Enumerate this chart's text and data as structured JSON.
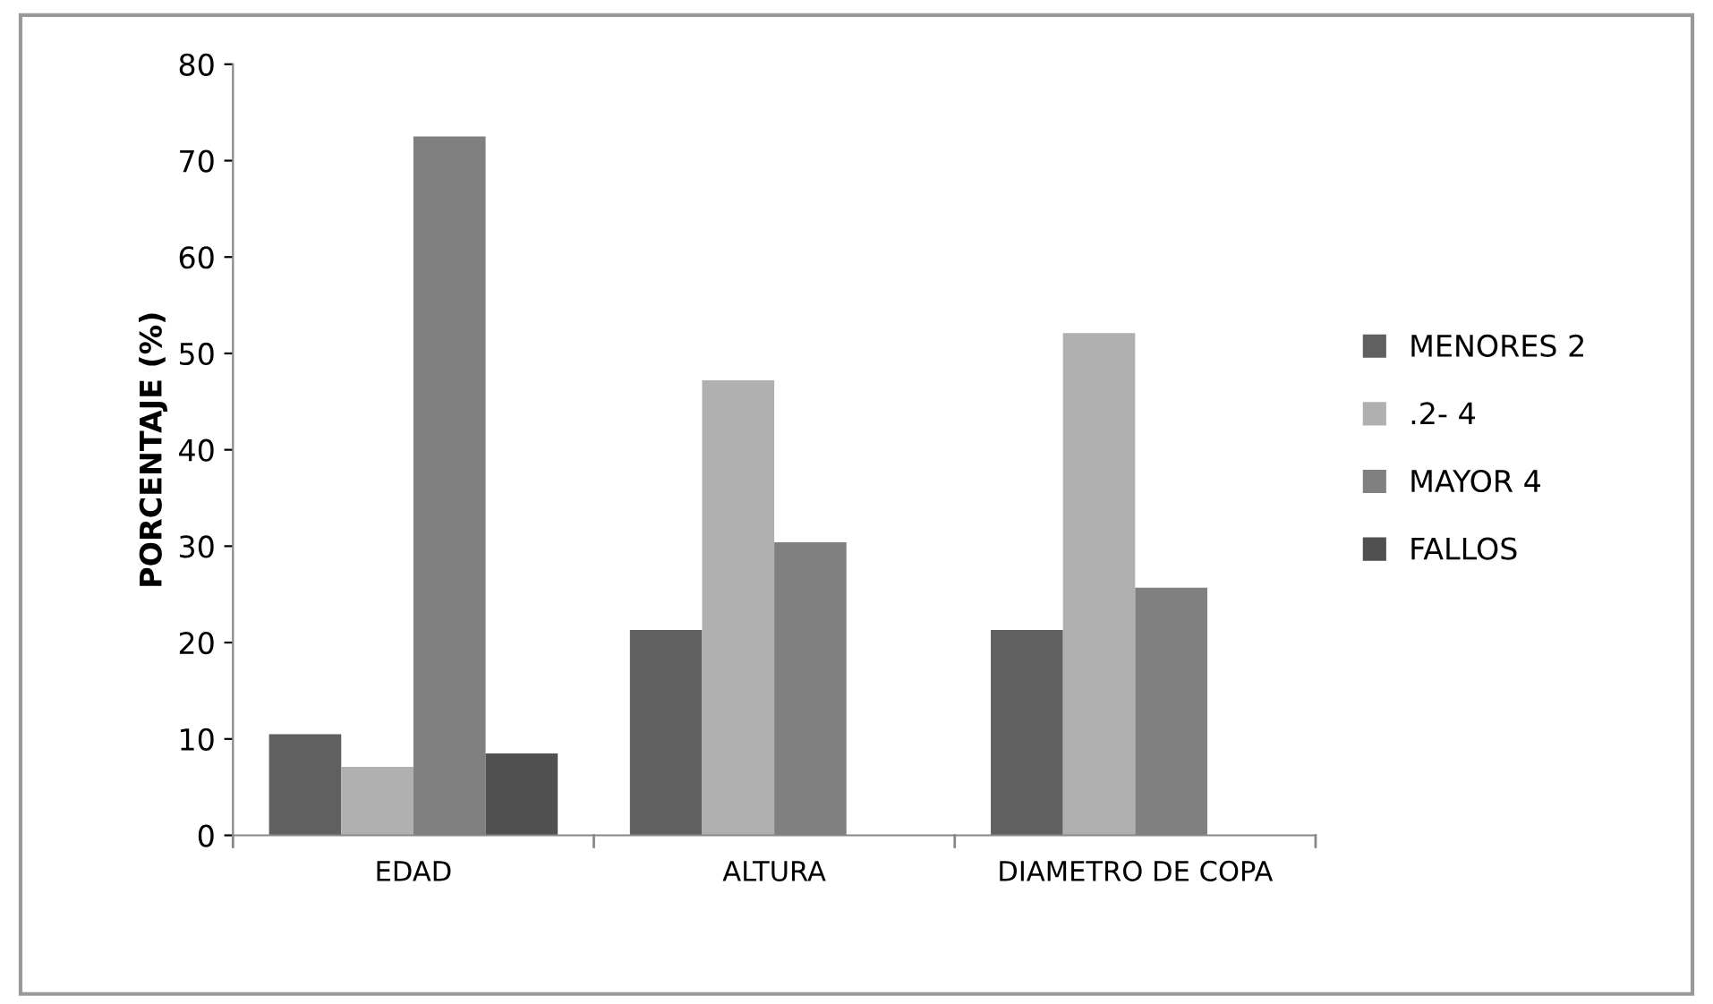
{
  "chart_data": {
    "type": "bar",
    "ylabel": "PORCENTAJE (%)",
    "categories": [
      "EDAD",
      "ALTURA",
      "DIAMETRO DE COPA"
    ],
    "series": [
      {
        "name": "MENORES 2",
        "color": "#606060",
        "values": [
          10.5,
          21.3,
          21.3
        ]
      },
      {
        "name": ".2- 4",
        "color": "#b0b0b0",
        "values": [
          7.1,
          47.2,
          52.1
        ]
      },
      {
        "name": "MAYOR 4",
        "color": "#808080",
        "values": [
          72.5,
          30.4,
          25.7
        ]
      },
      {
        "name": "FALLOS",
        "color": "#505050",
        "values": [
          8.5,
          null,
          null
        ]
      }
    ],
    "ylim": [
      0,
      80
    ],
    "yticks": [
      0,
      10,
      20,
      30,
      40,
      50,
      60,
      70,
      80
    ],
    "grid": false,
    "legend": "right"
  }
}
